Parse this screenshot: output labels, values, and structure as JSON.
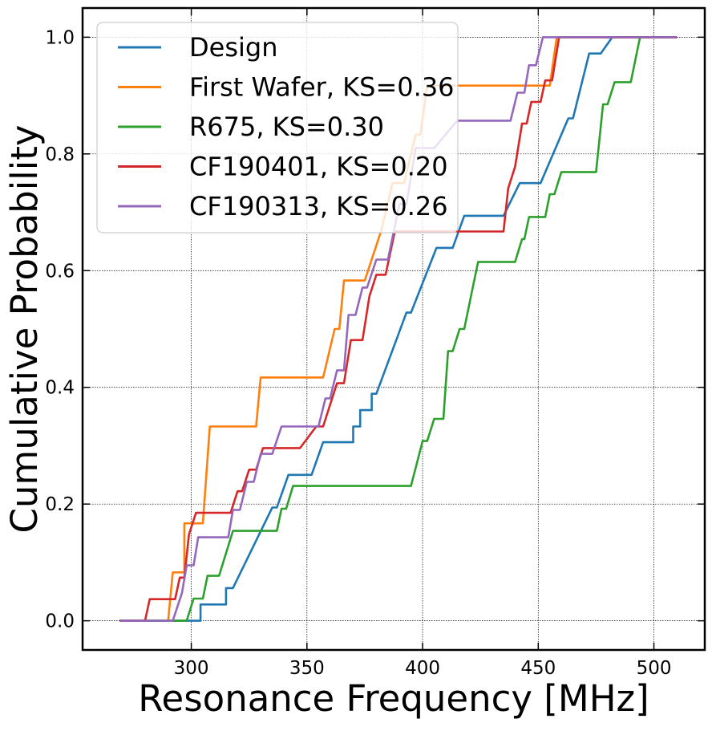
{
  "chart_data": {
    "type": "line",
    "line_style": "step",
    "xlabel": "Resonance Frequency [MHz]",
    "ylabel": "Cumulative Probability",
    "xlim": [
      253,
      522
    ],
    "ylim": [
      -0.05,
      1.05
    ],
    "xticks": [
      "300",
      "350",
      "400",
      "450",
      "500"
    ],
    "yticks": [
      "0.0",
      "0.2",
      "0.4",
      "0.6",
      "0.8",
      "1.0"
    ],
    "grid": true,
    "legend_position": "top-left",
    "series": [
      {
        "name": "Design",
        "color": "#1f77b4",
        "points": [
          [
            269,
            0
          ],
          [
            304,
            0
          ],
          [
            304,
            0.028
          ],
          [
            307,
            0.028
          ],
          [
            315,
            0.028
          ],
          [
            315,
            0.056
          ],
          [
            318,
            0.056
          ],
          [
            335,
            0.194
          ],
          [
            337,
            0.194
          ],
          [
            342,
            0.25
          ],
          [
            352,
            0.25
          ],
          [
            357,
            0.306
          ],
          [
            370,
            0.306
          ],
          [
            370,
            0.333
          ],
          [
            373,
            0.333
          ],
          [
            373,
            0.361
          ],
          [
            378,
            0.361
          ],
          [
            378,
            0.389
          ],
          [
            380,
            0.389
          ],
          [
            393,
            0.528
          ],
          [
            395,
            0.528
          ],
          [
            406,
            0.639
          ],
          [
            413,
            0.639
          ],
          [
            418,
            0.694
          ],
          [
            435,
            0.694
          ],
          [
            442,
            0.75
          ],
          [
            451,
            0.75
          ],
          [
            463,
            0.861
          ],
          [
            465,
            0.861
          ],
          [
            472,
            0.972
          ],
          [
            477,
            0.972
          ],
          [
            482,
            1.0
          ],
          [
            510,
            1.0
          ]
        ]
      },
      {
        "name": "First Wafer, KS=0.36",
        "color": "#ff7f0e",
        "points": [
          [
            269,
            0
          ],
          [
            290,
            0
          ],
          [
            292,
            0.083
          ],
          [
            297,
            0.083
          ],
          [
            297,
            0.167
          ],
          [
            305,
            0.167
          ],
          [
            308,
            0.333
          ],
          [
            328,
            0.333
          ],
          [
            330,
            0.417
          ],
          [
            357,
            0.417
          ],
          [
            362,
            0.5
          ],
          [
            364,
            0.5
          ],
          [
            366,
            0.583
          ],
          [
            375,
            0.583
          ],
          [
            382,
            0.667
          ],
          [
            387,
            0.75
          ],
          [
            392,
            0.75
          ],
          [
            397,
            0.833
          ],
          [
            399,
            0.833
          ],
          [
            402,
            0.917
          ],
          [
            455,
            0.917
          ],
          [
            458,
            1.0
          ],
          [
            510,
            1.0
          ]
        ]
      },
      {
        "name": "R675, KS=0.30",
        "color": "#2ca02c",
        "points": [
          [
            269,
            0
          ],
          [
            298,
            0
          ],
          [
            301,
            0.038
          ],
          [
            305,
            0.038
          ],
          [
            307,
            0.077
          ],
          [
            312,
            0.077
          ],
          [
            318,
            0.154
          ],
          [
            337,
            0.154
          ],
          [
            339,
            0.192
          ],
          [
            341,
            0.192
          ],
          [
            344,
            0.231
          ],
          [
            395,
            0.231
          ],
          [
            400,
            0.308
          ],
          [
            402,
            0.308
          ],
          [
            405,
            0.346
          ],
          [
            409,
            0.346
          ],
          [
            411,
            0.462
          ],
          [
            413,
            0.462
          ],
          [
            416,
            0.5
          ],
          [
            418,
            0.5
          ],
          [
            422,
            0.577
          ],
          [
            424,
            0.615
          ],
          [
            440,
            0.615
          ],
          [
            443,
            0.654
          ],
          [
            444,
            0.654
          ],
          [
            446,
            0.692
          ],
          [
            453,
            0.692
          ],
          [
            455,
            0.731
          ],
          [
            457,
            0.731
          ],
          [
            460,
            0.769
          ],
          [
            475,
            0.769
          ],
          [
            477,
            0.846
          ],
          [
            478,
            0.885
          ],
          [
            480,
            0.885
          ],
          [
            483,
            0.923
          ],
          [
            490,
            0.923
          ],
          [
            494,
            1.0
          ],
          [
            510,
            1.0
          ]
        ]
      },
      {
        "name": "CF190401, KS=0.20",
        "color": "#d62728",
        "points": [
          [
            269,
            0
          ],
          [
            280,
            0
          ],
          [
            282,
            0.037
          ],
          [
            293,
            0.037
          ],
          [
            295,
            0.074
          ],
          [
            297,
            0.074
          ],
          [
            299,
            0.148
          ],
          [
            302,
            0.185
          ],
          [
            317,
            0.185
          ],
          [
            320,
            0.222
          ],
          [
            322,
            0.222
          ],
          [
            325,
            0.259
          ],
          [
            328,
            0.259
          ],
          [
            331,
            0.296
          ],
          [
            347,
            0.296
          ],
          [
            354,
            0.333
          ],
          [
            357,
            0.333
          ],
          [
            363,
            0.407
          ],
          [
            366,
            0.407
          ],
          [
            369,
            0.481
          ],
          [
            374,
            0.481
          ],
          [
            377,
            0.556
          ],
          [
            380,
            0.593
          ],
          [
            384,
            0.593
          ],
          [
            388,
            0.667
          ],
          [
            435,
            0.667
          ],
          [
            437,
            0.741
          ],
          [
            440,
            0.778
          ],
          [
            443,
            0.852
          ],
          [
            445,
            0.852
          ],
          [
            447,
            0.889
          ],
          [
            451,
            0.889
          ],
          [
            453,
            0.926
          ],
          [
            456,
            0.926
          ],
          [
            459,
            1.0
          ],
          [
            510,
            1.0
          ]
        ]
      },
      {
        "name": "CF190313, KS=0.26",
        "color": "#9467bd",
        "points": [
          [
            269,
            0
          ],
          [
            292,
            0
          ],
          [
            296,
            0.048
          ],
          [
            298,
            0.095
          ],
          [
            301,
            0.095
          ],
          [
            303,
            0.143
          ],
          [
            316,
            0.143
          ],
          [
            318,
            0.19
          ],
          [
            321,
            0.19
          ],
          [
            324,
            0.238
          ],
          [
            327,
            0.238
          ],
          [
            330,
            0.286
          ],
          [
            335,
            0.286
          ],
          [
            339,
            0.333
          ],
          [
            355,
            0.333
          ],
          [
            358,
            0.381
          ],
          [
            360,
            0.381
          ],
          [
            363,
            0.429
          ],
          [
            366,
            0.429
          ],
          [
            368,
            0.524
          ],
          [
            371,
            0.524
          ],
          [
            374,
            0.571
          ],
          [
            376,
            0.571
          ],
          [
            380,
            0.619
          ],
          [
            385,
            0.619
          ],
          [
            390,
            0.714
          ],
          [
            393,
            0.714
          ],
          [
            397,
            0.81
          ],
          [
            405,
            0.81
          ],
          [
            415,
            0.857
          ],
          [
            438,
            0.857
          ],
          [
            441,
            0.905
          ],
          [
            444,
            0.905
          ],
          [
            446,
            0.952
          ],
          [
            449,
            0.952
          ],
          [
            452,
            1.0
          ],
          [
            510,
            1.0
          ]
        ]
      }
    ]
  }
}
